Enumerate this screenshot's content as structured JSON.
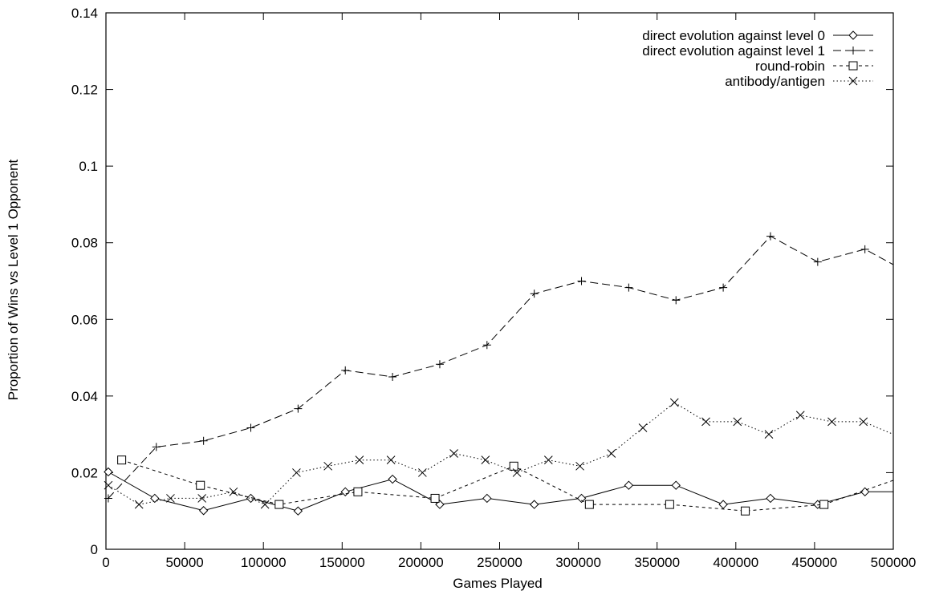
{
  "chart_data": {
    "type": "line",
    "title": "",
    "xlabel": "Games Played",
    "ylabel": "Proportion of Wins vs Level 1 Opponent",
    "xlim": [
      0,
      500000
    ],
    "ylim": [
      0,
      0.14
    ],
    "xticks": [
      "0",
      "50000",
      "100000",
      "150000",
      "200000",
      "250000",
      "300000",
      "350000",
      "400000",
      "450000",
      "500000"
    ],
    "xtick_values": [
      0,
      50000,
      100000,
      150000,
      200000,
      250000,
      300000,
      350000,
      400000,
      450000,
      500000
    ],
    "yticks": [
      "0",
      "0.02",
      "0.04",
      "0.06",
      "0.08",
      "0.1",
      "0.12",
      "0.14"
    ],
    "ytick_values": [
      0,
      0.02,
      0.04,
      0.06,
      0.08,
      0.1,
      0.12,
      0.14
    ],
    "grid": false,
    "legend_position": "top-right",
    "series": [
      {
        "name": "direct evolution against level 0",
        "line_style": "solid",
        "marker": "diamond",
        "points": [
          [
            1500,
            0.0202
          ],
          [
            31000,
            0.0133
          ],
          [
            62000,
            0.0101
          ],
          [
            92000,
            0.0133
          ],
          [
            122000,
            0.01
          ],
          [
            152000,
            0.015
          ],
          [
            182000,
            0.0183
          ],
          [
            212000,
            0.0117
          ],
          [
            242000,
            0.0133
          ],
          [
            272000,
            0.0117
          ],
          [
            302000,
            0.0133
          ],
          [
            332000,
            0.0167
          ],
          [
            362000,
            0.0167
          ],
          [
            392000,
            0.0117
          ],
          [
            422000,
            0.0133
          ],
          [
            452000,
            0.0117
          ],
          [
            482000,
            0.015
          ],
          [
            500000,
            0.015
          ]
        ]
      },
      {
        "name": "direct evolution against level 1",
        "line_style": "dashed",
        "marker": "plus",
        "points": [
          [
            1500,
            0.0133
          ],
          [
            32000,
            0.0267
          ],
          [
            62000,
            0.0283
          ],
          [
            92000,
            0.0317
          ],
          [
            122000,
            0.0367
          ],
          [
            152000,
            0.0467
          ],
          [
            182000,
            0.045
          ],
          [
            212000,
            0.0483
          ],
          [
            242000,
            0.0533
          ],
          [
            272000,
            0.0667
          ],
          [
            302000,
            0.07
          ],
          [
            332000,
            0.0683
          ],
          [
            362000,
            0.065
          ],
          [
            392000,
            0.0683
          ],
          [
            422000,
            0.0817
          ],
          [
            452000,
            0.075
          ],
          [
            482000,
            0.0783
          ],
          [
            500000,
            0.0743
          ]
        ]
      },
      {
        "name": "round-robin",
        "line_style": "short-dashed",
        "marker": "square",
        "points": [
          [
            10000,
            0.0233
          ],
          [
            60000,
            0.0167
          ],
          [
            110000,
            0.0117
          ],
          [
            160000,
            0.015
          ],
          [
            209000,
            0.0133
          ],
          [
            259000,
            0.0217
          ],
          [
            307000,
            0.0117
          ],
          [
            358000,
            0.0117
          ],
          [
            406000,
            0.01
          ],
          [
            456000,
            0.0117
          ],
          [
            500000,
            0.018
          ]
        ]
      },
      {
        "name": "antibody/antigen",
        "line_style": "dotted",
        "marker": "cross",
        "points": [
          [
            1500,
            0.0167
          ],
          [
            21000,
            0.0117
          ],
          [
            41000,
            0.0133
          ],
          [
            61000,
            0.0133
          ],
          [
            81000,
            0.015
          ],
          [
            101000,
            0.0117
          ],
          [
            121000,
            0.02
          ],
          [
            141000,
            0.0217
          ],
          [
            161000,
            0.0233
          ],
          [
            181000,
            0.0233
          ],
          [
            201000,
            0.02
          ],
          [
            221000,
            0.025
          ],
          [
            241000,
            0.0233
          ],
          [
            261000,
            0.02
          ],
          [
            281000,
            0.0233
          ],
          [
            301000,
            0.0217
          ],
          [
            321000,
            0.025
          ],
          [
            341000,
            0.0317
          ],
          [
            361000,
            0.0383
          ],
          [
            381000,
            0.0333
          ],
          [
            401000,
            0.0333
          ],
          [
            421000,
            0.03
          ],
          [
            441000,
            0.035
          ],
          [
            461000,
            0.0333
          ],
          [
            481000,
            0.0333
          ],
          [
            500000,
            0.03
          ]
        ]
      }
    ]
  }
}
